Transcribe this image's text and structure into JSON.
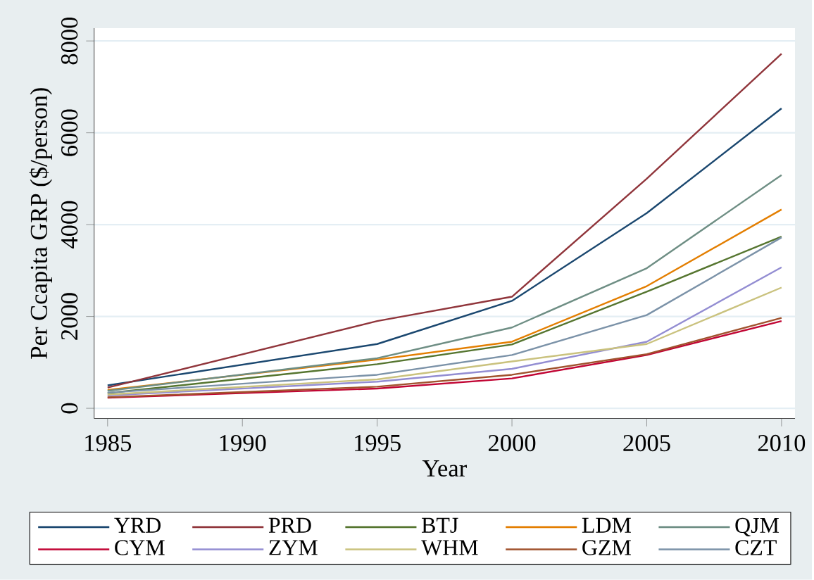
{
  "chart_data": {
    "type": "line",
    "xlabel": "Year",
    "ylabel": "Per Ccapita GRP ($/person)",
    "x": [
      1985,
      1995,
      2000,
      2005,
      2010
    ],
    "series": [
      {
        "name": "YRD",
        "color": "#1a476f",
        "values": [
          500,
          1400,
          2340,
          4250,
          6530
        ]
      },
      {
        "name": "PRD",
        "color": "#90353b",
        "values": [
          450,
          1900,
          2430,
          5000,
          7720
        ]
      },
      {
        "name": "BTJ",
        "color": "#55752f",
        "values": [
          330,
          960,
          1390,
          2540,
          3740
        ]
      },
      {
        "name": "LDM",
        "color": "#e37e00",
        "values": [
          400,
          1060,
          1450,
          2660,
          4330
        ]
      },
      {
        "name": "QJM",
        "color": "#6e8e84",
        "values": [
          380,
          1090,
          1760,
          3050,
          5080
        ]
      },
      {
        "name": "CYM",
        "color": "#c10534",
        "values": [
          230,
          430,
          650,
          1160,
          1900
        ]
      },
      {
        "name": "ZYM",
        "color": "#938dd2",
        "values": [
          280,
          580,
          860,
          1450,
          3070
        ]
      },
      {
        "name": "WHM",
        "color": "#cac27e",
        "values": [
          300,
          630,
          1020,
          1400,
          2630
        ]
      },
      {
        "name": "GZM",
        "color": "#a0522d",
        "values": [
          240,
          470,
          730,
          1180,
          1970
        ]
      },
      {
        "name": "CZT",
        "color": "#7b92a8",
        "values": [
          340,
          730,
          1160,
          2030,
          3720
        ]
      }
    ],
    "xlim": [
      1984.5,
      2010.5
    ],
    "ylim": [
      -220,
      8280
    ],
    "xticks": [
      1985,
      1990,
      1995,
      2000,
      2005,
      2010
    ],
    "yticks": [
      0,
      2000,
      4000,
      6000,
      8000
    ],
    "grid": "y",
    "legend": "bottom",
    "marker": "none",
    "line_style": "solid"
  }
}
